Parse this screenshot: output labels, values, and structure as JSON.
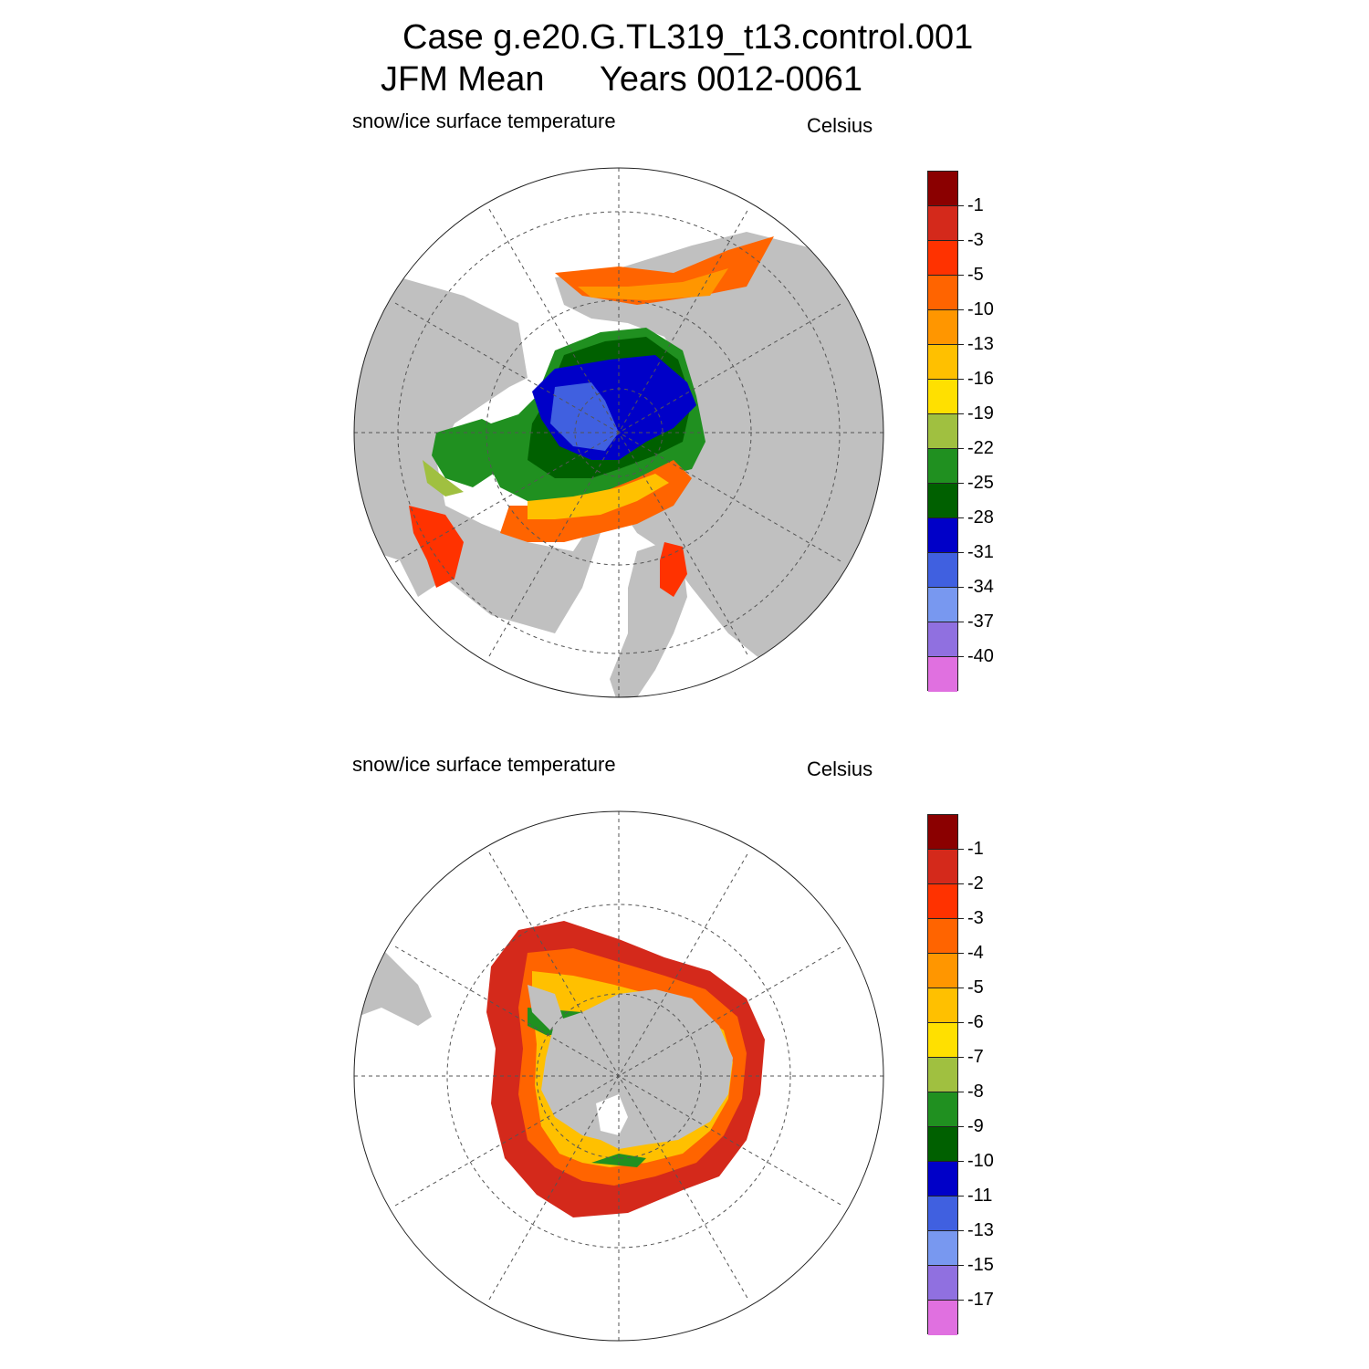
{
  "figure": {
    "title_line1": "Case g.e20.G.TL319_t13.control.001",
    "title_line2_left": "JFM Mean",
    "title_line2_right": "Years 0012-0061"
  },
  "colors": {
    "land": "#c0c0c0",
    "ocean": "#ffffff",
    "grid": "#555555"
  },
  "panels": [
    {
      "hemisphere": "north",
      "variable_label": "snow/ice surface temperature",
      "units_label": "Celsius",
      "colorbar": {
        "colors": [
          "#8b0000",
          "#d4291b",
          "#ff3200",
          "#ff6400",
          "#ff9600",
          "#ffc000",
          "#ffe000",
          "#a0c040",
          "#209020",
          "#006000",
          "#0000c8",
          "#4060e0",
          "#7898f0",
          "#9070e0",
          "#e070e0"
        ],
        "labels": [
          "-1",
          "-3",
          "-5",
          "-10",
          "-13",
          "-16",
          "-19",
          "-22",
          "-25",
          "-28",
          "-31",
          "-34",
          "-37",
          "-40"
        ]
      }
    },
    {
      "hemisphere": "south",
      "variable_label": "snow/ice surface temperature",
      "units_label": "Celsius",
      "colorbar": {
        "colors": [
          "#8b0000",
          "#d4291b",
          "#ff3200",
          "#ff6400",
          "#ff9600",
          "#ffc000",
          "#ffe000",
          "#a0c040",
          "#209020",
          "#006000",
          "#0000c8",
          "#4060e0",
          "#7898f0",
          "#9070e0",
          "#e070e0"
        ],
        "labels": [
          "-1",
          "-2",
          "-3",
          "-4",
          "-5",
          "-6",
          "-7",
          "-8",
          "-9",
          "-10",
          "-11",
          "-13",
          "-15",
          "-17"
        ]
      }
    }
  ]
}
